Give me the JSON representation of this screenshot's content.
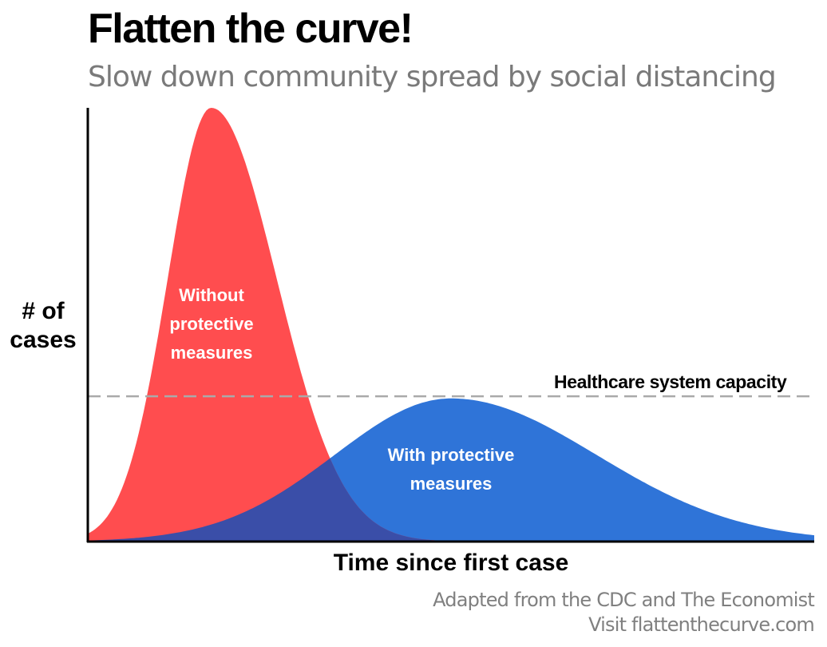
{
  "title": "Flatten the curve!",
  "subtitle": "Slow down community spread by social distancing",
  "chart_data": {
    "type": "area",
    "xlabel": "Time since first case",
    "ylabel": "# of cases",
    "series": [
      {
        "label_text": "Without protective measures",
        "color": "#ff4d4f",
        "peak": 1.0,
        "peak_x": 0.17,
        "spread": 0.06,
        "skew": 1.5
      },
      {
        "label_text": "With protective measures",
        "color": "#2f74d8",
        "peak": 0.33,
        "peak_x": 0.5,
        "spread": 0.16,
        "skew": 1.25
      }
    ],
    "overlap_color": "#3a4ea8",
    "reference_line": {
      "label": "Healthcare system capacity",
      "value": 0.335,
      "color": "#aaaaaa",
      "style": "dashed"
    },
    "xlim": [
      0,
      1
    ],
    "ylim": [
      0,
      1
    ]
  },
  "credits": {
    "line1": "Adapted from the CDC and The Economist",
    "line2": "Visit flattenthecurve.com"
  }
}
